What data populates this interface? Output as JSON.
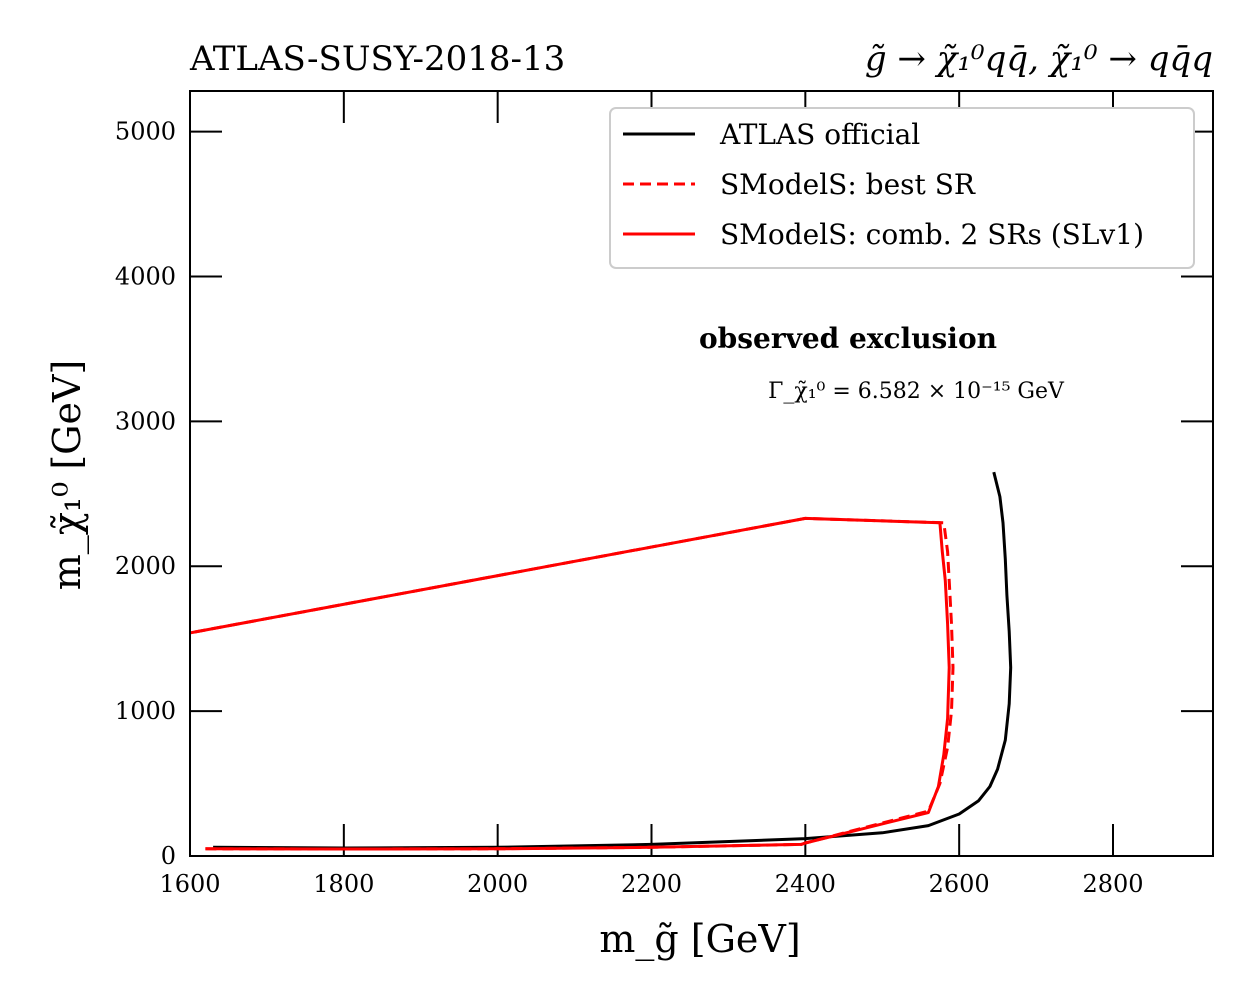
{
  "chart_data": {
    "type": "line",
    "title_left": "ATLAS-SUSY-2018-13",
    "title_right": "g̃ → χ̃₁⁰qq̄, χ̃₁⁰ → qq̄q",
    "xlabel": "m_g̃ [GeV]",
    "ylabel": "m_χ̃₁⁰ [GeV]",
    "xlim": [
      1600,
      2930
    ],
    "ylim": [
      0,
      5280
    ],
    "xticks": [
      1600,
      1800,
      2000,
      2200,
      2400,
      2600,
      2800
    ],
    "yticks": [
      0,
      1000,
      2000,
      3000,
      4000,
      5000
    ],
    "grid": false,
    "legend_placement": "top-right",
    "annotations": {
      "main": "observed exclusion",
      "sub": "Γ_χ̃₁⁰ = 6.582 × 10⁻¹⁵ GeV"
    },
    "series": [
      {
        "name": "ATLAS official",
        "color": "#000000",
        "style": "solid",
        "points": [
          [
            1630,
            60
          ],
          [
            1800,
            55
          ],
          [
            2000,
            60
          ],
          [
            2200,
            80
          ],
          [
            2400,
            120
          ],
          [
            2500,
            160
          ],
          [
            2560,
            210
          ],
          [
            2600,
            290
          ],
          [
            2625,
            380
          ],
          [
            2640,
            480
          ],
          [
            2650,
            600
          ],
          [
            2660,
            800
          ],
          [
            2665,
            1050
          ],
          [
            2667,
            1300
          ],
          [
            2665,
            1550
          ],
          [
            2662,
            1800
          ],
          [
            2660,
            2050
          ],
          [
            2657,
            2300
          ],
          [
            2653,
            2480
          ],
          [
            2645,
            2650
          ]
        ]
      },
      {
        "name": "SModelS: best SR",
        "color": "#ff0000",
        "style": "dashed",
        "points": [
          [
            1620,
            50
          ],
          [
            1800,
            48
          ],
          [
            2000,
            50
          ],
          [
            2200,
            60
          ],
          [
            2395,
            80
          ],
          [
            2400,
            90
          ],
          [
            2560,
            310
          ],
          [
            2575,
            500
          ],
          [
            2585,
            750
          ],
          [
            2590,
            1000
          ],
          [
            2592,
            1300
          ],
          [
            2590,
            1600
          ],
          [
            2587,
            1900
          ],
          [
            2585,
            2100
          ],
          [
            2580,
            2300
          ],
          [
            2400,
            2330
          ],
          [
            1600,
            1540
          ]
        ]
      },
      {
        "name": "SModelS: comb. 2 SRs (SLv1)",
        "color": "#ff0000",
        "style": "solid",
        "points": [
          [
            1620,
            50
          ],
          [
            1800,
            48
          ],
          [
            2000,
            50
          ],
          [
            2200,
            60
          ],
          [
            2395,
            80
          ],
          [
            2400,
            90
          ],
          [
            2560,
            300
          ],
          [
            2573,
            480
          ],
          [
            2580,
            700
          ],
          [
            2585,
            950
          ],
          [
            2587,
            1300
          ],
          [
            2585,
            1600
          ],
          [
            2582,
            1900
          ],
          [
            2578,
            2100
          ],
          [
            2575,
            2300
          ],
          [
            2400,
            2330
          ],
          [
            1600,
            1540
          ]
        ]
      }
    ]
  }
}
